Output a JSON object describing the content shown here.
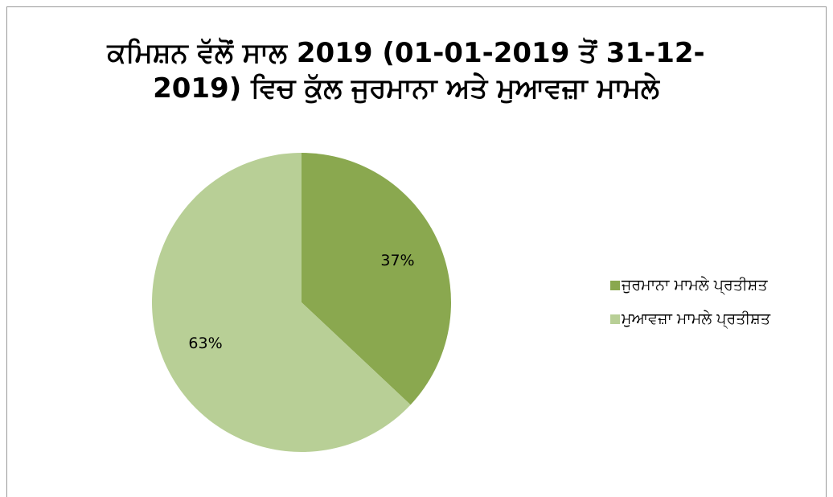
{
  "chart_data": {
    "type": "pie",
    "title": "ਕਮਿਸ਼ਨ ਵੱਲੋਂ ਸਾਲ 2019 (01-01-2019 ਤੋਂ 31-12-2019) ਵਿਚ ਕੁੱਲ ਜੁਰਮਾਨਾ ਅਤੇ ਮੁਆਵਜ਼ਾ ਮਾਮਲੇ",
    "categories": [
      "ਜੁਰਮਾਨਾ ਮਾਮਲੇ ਪ੍ਰਤੀਸ਼ਤ",
      "ਮੁਆਵਜ਼ਾ ਮਾਮਲੇ ਪ੍ਰਤੀਸ਼ਤ"
    ],
    "values": [
      37,
      63
    ],
    "value_labels": [
      "37%",
      "63%"
    ],
    "colors": [
      "#8aa84f",
      "#b8cf96"
    ],
    "legend": "right"
  }
}
